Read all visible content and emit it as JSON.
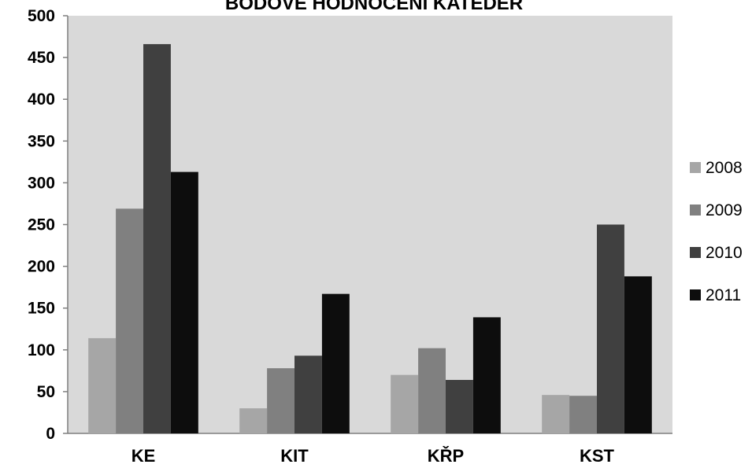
{
  "chart_data": {
    "type": "bar",
    "title": "BODOVÉ HODNOCENÍ KATEDER",
    "xlabel": "",
    "ylabel": "",
    "categories": [
      "KE",
      "KIT",
      "KŘP",
      "KST"
    ],
    "series": [
      {
        "name": "2008",
        "values": [
          114,
          30,
          70,
          46
        ],
        "color": "#a6a6a6"
      },
      {
        "name": "2009",
        "values": [
          269,
          78,
          102,
          45
        ],
        "color": "#808080"
      },
      {
        "name": "2010",
        "values": [
          466,
          93,
          64,
          250
        ],
        "color": "#404040"
      },
      {
        "name": "2011",
        "values": [
          313,
          167,
          139,
          188
        ],
        "color": "#0d0d0d"
      }
    ],
    "ylim": [
      0,
      500
    ],
    "yticks": [
      "0",
      "50",
      "100",
      "150",
      "200",
      "250",
      "300",
      "350",
      "400",
      "450",
      "500"
    ],
    "grid": false,
    "legend_position": "right",
    "plot_background": "#d9d9d9"
  }
}
